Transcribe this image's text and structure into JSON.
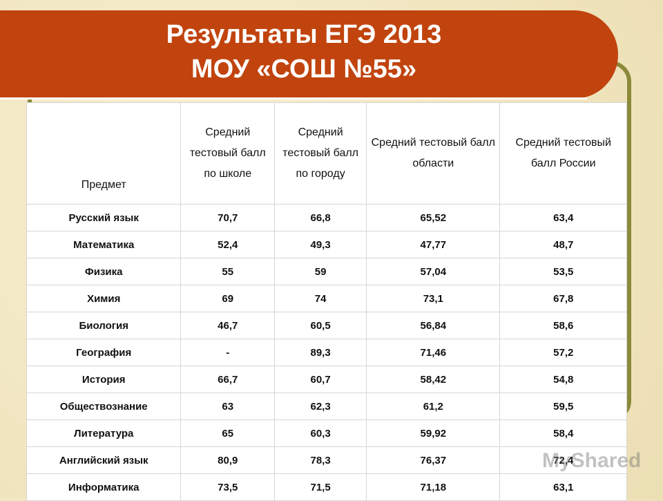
{
  "header": {
    "title_lines": [
      "Результаты ЕГЭ 2013",
      "МОУ «СОШ №55»"
    ]
  },
  "table": {
    "columns": [
      "Предмет",
      "Средний тестовый балл по школе",
      "Средний тестовый балл по городу",
      "Средний тестовый балл области",
      "Средний тестовый балл России"
    ],
    "rows": [
      [
        "Русский язык",
        "70,7",
        "66,8",
        "65,52",
        "63,4"
      ],
      [
        "Математика",
        "52,4",
        "49,3",
        "47,77",
        "48,7"
      ],
      [
        "Физика",
        "55",
        "59",
        "57,04",
        "53,5"
      ],
      [
        "Химия",
        "69",
        "74",
        "73,1",
        "67,8"
      ],
      [
        "Биология",
        "46,7",
        "60,5",
        "56,84",
        "58,6"
      ],
      [
        "География",
        "-",
        "89,3",
        "71,46",
        "57,2"
      ],
      [
        "История",
        "66,7",
        "60,7",
        "58,42",
        "54,8"
      ],
      [
        "Обществознание",
        "63",
        "62,3",
        "61,2",
        "59,5"
      ],
      [
        "Литература",
        "65",
        "60,3",
        "59,92",
        "58,4"
      ],
      [
        "Английский язык",
        "80,9",
        "78,3",
        "76,37",
        "72,4"
      ],
      [
        "Информатика",
        "73,5",
        "71,5",
        "71,18",
        "63,1"
      ]
    ]
  },
  "watermark": "MyShared"
}
